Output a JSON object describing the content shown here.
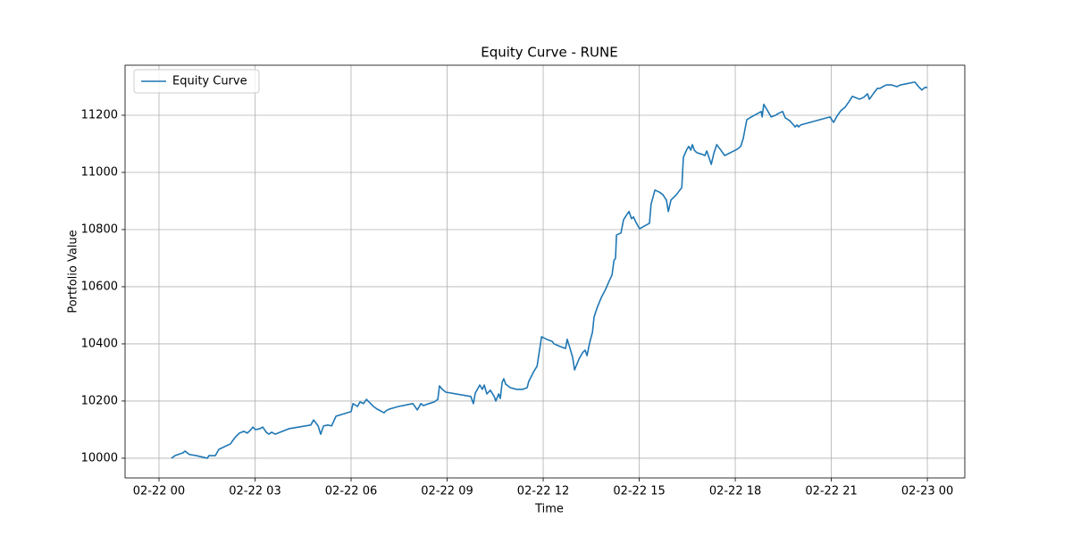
{
  "chart_data": {
    "type": "line",
    "title": "Equity Curve - RUNE",
    "x_label": "Time",
    "y_label": "Portfolio Value",
    "x": [
      0.39,
      0.5,
      0.75,
      0.81,
      0.95,
      1.17,
      1.51,
      1.56,
      1.76,
      1.87,
      2.23,
      2.37,
      2.51,
      2.65,
      2.76,
      2.87,
      2.93,
      3.01,
      3.15,
      3.24,
      3.35,
      3.43,
      3.52,
      3.63,
      4.05,
      4.74,
      4.83,
      4.97,
      5.05,
      5.14,
      5.27,
      5.39,
      5.53,
      6.0,
      6.06,
      6.2,
      6.28,
      6.39,
      6.48,
      6.7,
      6.81,
      7.03,
      7.09,
      7.2,
      7.48,
      7.93,
      8.07,
      8.18,
      8.26,
      8.43,
      8.6,
      8.71,
      8.76,
      8.85,
      8.96,
      9.74,
      9.82,
      9.88,
      10.02,
      10.1,
      10.16,
      10.24,
      10.35,
      10.47,
      10.52,
      10.61,
      10.66,
      10.72,
      10.77,
      10.83,
      10.97,
      11.16,
      11.36,
      11.5,
      11.55,
      11.72,
      11.81,
      11.95,
      12.11,
      12.28,
      12.34,
      12.53,
      12.7,
      12.75,
      12.84,
      12.92,
      12.98,
      13.12,
      13.23,
      13.31,
      13.37,
      13.45,
      13.54,
      13.59,
      13.7,
      13.82,
      13.95,
      14.07,
      14.15,
      14.21,
      14.26,
      14.29,
      14.43,
      14.51,
      14.6,
      14.68,
      14.76,
      14.82,
      14.9,
      15.01,
      15.32,
      15.37,
      15.49,
      15.63,
      15.74,
      15.85,
      15.91,
      15.99,
      16.16,
      16.33,
      16.38,
      16.49,
      16.55,
      16.61,
      16.66,
      16.72,
      16.8,
      16.97,
      17.05,
      17.11,
      17.16,
      17.25,
      17.33,
      17.42,
      17.53,
      17.67,
      18.06,
      18.17,
      18.25,
      18.36,
      18.5,
      18.7,
      18.81,
      18.84,
      18.89,
      19.01,
      19.12,
      19.26,
      19.34,
      19.48,
      19.56,
      19.7,
      19.82,
      19.87,
      19.93,
      19.98,
      20.04,
      20.96,
      21.07,
      21.18,
      21.3,
      21.43,
      21.55,
      21.66,
      21.88,
      22.02,
      22.13,
      22.19,
      22.33,
      22.44,
      22.52,
      22.61,
      22.72,
      22.89,
      23.05,
      23.16,
      23.61,
      23.75,
      23.83,
      23.92,
      24.0
    ],
    "series": [
      {
        "name": "Equity Curve",
        "color": "#1f77b4",
        "values": [
          10000,
          10009,
          10019,
          10025,
          10013,
          10009,
          10000,
          10009,
          10009,
          10031,
          10050,
          10072,
          10088,
          10094,
          10088,
          10100,
          10109,
          10100,
          10103,
          10109,
          10091,
          10084,
          10091,
          10084,
          10103,
          10116,
          10134,
          10113,
          10084,
          10113,
          10116,
          10113,
          10147,
          10163,
          10191,
          10181,
          10197,
          10191,
          10206,
          10181,
          10172,
          10159,
          10166,
          10172,
          10181,
          10191,
          10169,
          10191,
          10184,
          10191,
          10197,
          10206,
          10253,
          10241,
          10231,
          10216,
          10191,
          10228,
          10256,
          10241,
          10256,
          10225,
          10238,
          10216,
          10200,
          10225,
          10209,
          10266,
          10278,
          10259,
          10247,
          10241,
          10241,
          10247,
          10269,
          10306,
          10322,
          10425,
          10416,
          10409,
          10400,
          10391,
          10384,
          10416,
          10384,
          10353,
          10309,
          10347,
          10369,
          10378,
          10359,
          10403,
          10441,
          10494,
          10531,
          10563,
          10591,
          10622,
          10641,
          10691,
          10700,
          10781,
          10788,
          10834,
          10850,
          10863,
          10838,
          10844,
          10825,
          10803,
          10822,
          10888,
          10938,
          10931,
          10922,
          10903,
          10863,
          10903,
          10922,
          10947,
          11053,
          11081,
          11091,
          11078,
          11097,
          11078,
          11069,
          11063,
          11059,
          11075,
          11059,
          11028,
          11066,
          11097,
          11081,
          11059,
          11081,
          11091,
          11119,
          11184,
          11194,
          11206,
          11213,
          11194,
          11238,
          11216,
          11194,
          11200,
          11206,
          11213,
          11191,
          11181,
          11166,
          11159,
          11166,
          11159,
          11166,
          11194,
          11175,
          11197,
          11216,
          11228,
          11247,
          11266,
          11256,
          11263,
          11275,
          11256,
          11278,
          11294,
          11294,
          11300,
          11306,
          11306,
          11300,
          11306,
          11316,
          11297,
          11288,
          11297,
          11297
        ]
      }
    ],
    "xlim": [
      -1.06,
      25.17
    ],
    "xticks": [
      {
        "value": 0,
        "label": "02-22 00"
      },
      {
        "value": 3,
        "label": "02-22 03"
      },
      {
        "value": 6,
        "label": "02-22 06"
      },
      {
        "value": 9,
        "label": "02-22 09"
      },
      {
        "value": 12,
        "label": "02-22 12"
      },
      {
        "value": 15,
        "label": "02-22 15"
      },
      {
        "value": 18,
        "label": "02-22 18"
      },
      {
        "value": 21,
        "label": "02-22 21"
      },
      {
        "value": 24,
        "label": "02-23 00"
      }
    ],
    "ylim": [
      9931,
      11375
    ],
    "yticks": [
      10000,
      10200,
      10400,
      10600,
      10800,
      11000,
      11200
    ],
    "grid": true,
    "legend": "upper left"
  }
}
